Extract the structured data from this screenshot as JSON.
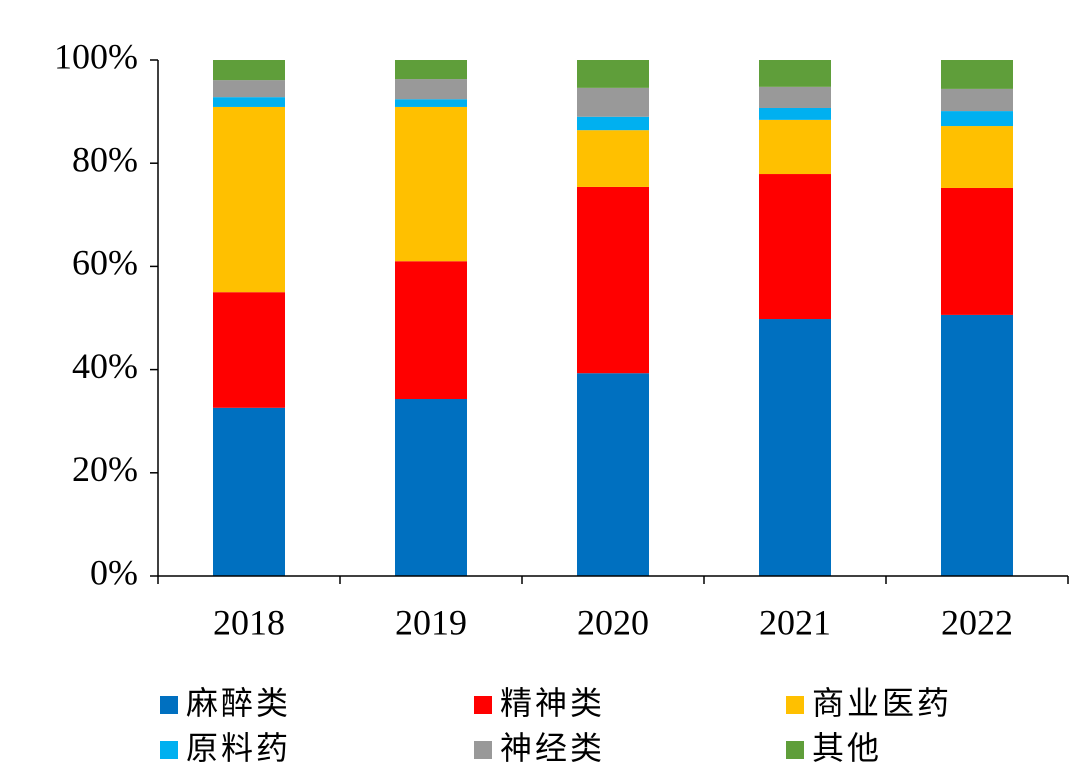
{
  "chart_data": {
    "type": "stacked_bar",
    "categories": [
      "2018",
      "2019",
      "2020",
      "2021",
      "2022"
    ],
    "series": [
      {
        "name": "麻醉类",
        "color": "#0070c0",
        "values": [
          32.6,
          34.3,
          39.3,
          49.8,
          50.6
        ]
      },
      {
        "name": "精神类",
        "color": "#ff0000",
        "values": [
          22.4,
          26.7,
          36.1,
          28.1,
          24.6
        ]
      },
      {
        "name": "商业医药",
        "color": "#ffc000",
        "values": [
          35.9,
          29.9,
          11.0,
          10.5,
          12.0
        ]
      },
      {
        "name": "原料药",
        "color": "#00b0f0",
        "values": [
          1.9,
          1.5,
          2.6,
          2.3,
          2.9
        ]
      },
      {
        "name": "神经类",
        "color": "#999999",
        "values": [
          3.3,
          3.9,
          5.6,
          4.1,
          4.3
        ]
      },
      {
        "name": "其他",
        "color": "#5f9e3a",
        "values": [
          3.9,
          3.7,
          5.4,
          5.2,
          5.6
        ]
      }
    ],
    "ylim": [
      0,
      100
    ],
    "yticks": [
      {
        "value": 0,
        "label": "0%"
      },
      {
        "value": 20,
        "label": "20%"
      },
      {
        "value": 40,
        "label": "40%"
      },
      {
        "value": 60,
        "label": "60%"
      },
      {
        "value": 80,
        "label": "80%"
      },
      {
        "value": 100,
        "label": "100%"
      }
    ],
    "grid": false
  }
}
